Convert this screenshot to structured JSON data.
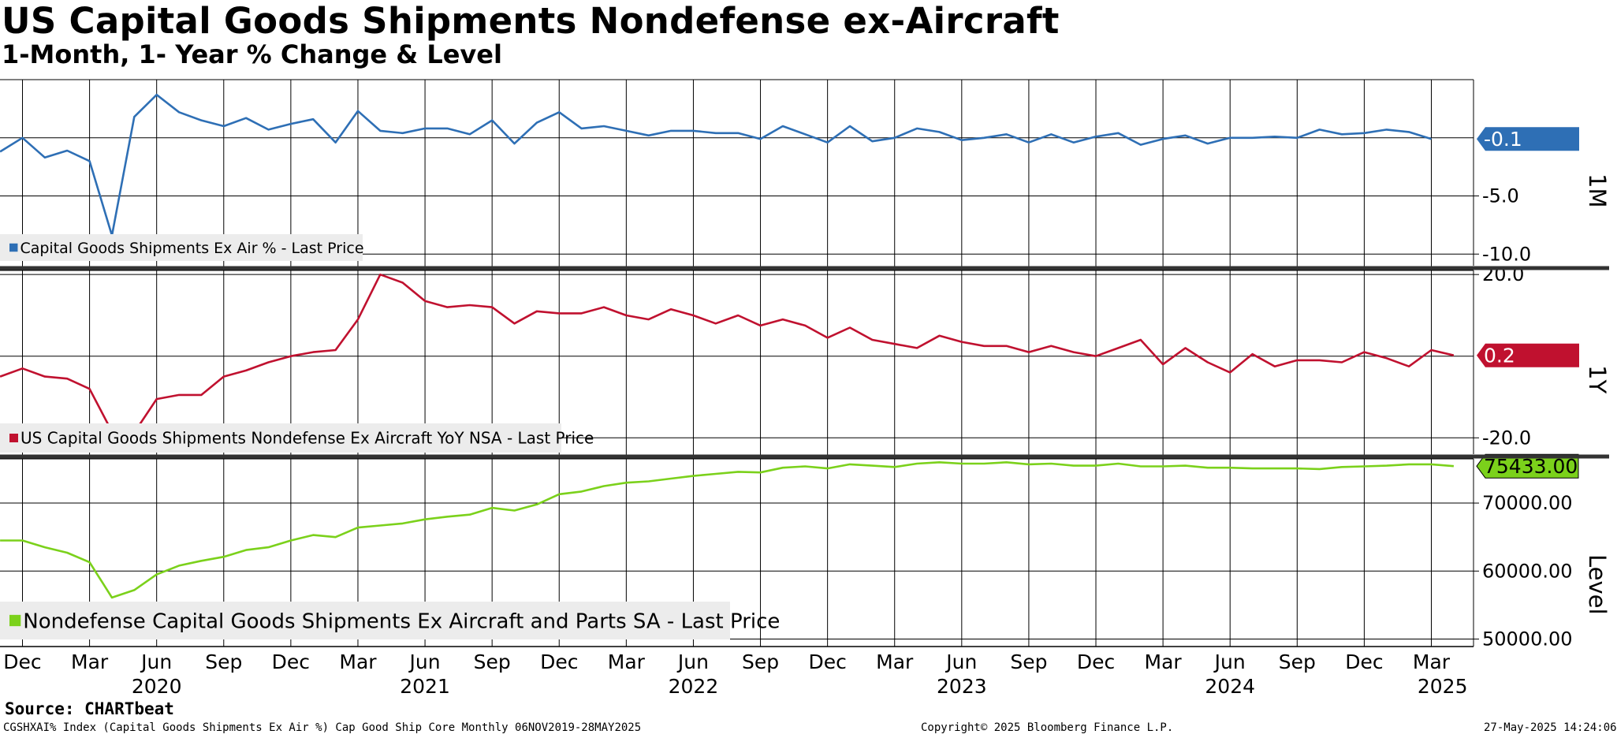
{
  "header": {
    "title": "US Capital Goods Shipments Nondefense ex-Aircraft",
    "subtitle": "1-Month, 1- Year % Change & Level"
  },
  "footer": {
    "source": "Source: CHARTbeat",
    "ticker": "CGSHXAI% Index (Capital Goods Shipments Ex Air %) Cap Good Ship Core  Monthly 06NOV2019-28MAY2025",
    "copyright": "Copyright© 2025 Bloomberg Finance L.P.",
    "timestamp": "27-May-2025 14:24:06"
  },
  "colors": {
    "blue": "#2e6fb5",
    "red": "#c0112f",
    "green": "#7bd11b"
  },
  "x_axis": {
    "month_labels": [
      "Dec",
      "Mar",
      "Jun",
      "Sep",
      "Dec",
      "Mar",
      "Jun",
      "Sep",
      "Dec",
      "Mar",
      "Jun",
      "Sep",
      "Dec",
      "Mar",
      "Jun",
      "Sep",
      "Dec",
      "Mar",
      "Jun",
      "Sep",
      "Dec",
      "Mar"
    ],
    "month_indices": [
      0,
      3,
      6,
      9,
      12,
      15,
      18,
      21,
      24,
      27,
      30,
      33,
      36,
      39,
      42,
      45,
      48,
      51,
      54,
      57,
      60,
      63
    ],
    "year_labels": [
      "2020",
      "2021",
      "2022",
      "2023",
      "2024",
      "2025"
    ],
    "year_indices": [
      6,
      18,
      30,
      42,
      54,
      63.5
    ]
  },
  "chart_data": [
    {
      "type": "line",
      "panel_label": "1M",
      "legend": "Capital Goods Shipments Ex Air % - Last Price",
      "x_start": "Nov 2019",
      "y_ticks": [
        -5.0,
        -10.0
      ],
      "y_tick_labels": [
        "-5.0",
        "-10.0"
      ],
      "ylim": [
        -11.0,
        5.0
      ],
      "last_value": -0.1,
      "last_label": "-0.1",
      "values": [
        -1.2,
        0.0,
        -1.7,
        -1.1,
        -2.0,
        -8.4,
        1.8,
        3.7,
        2.2,
        1.5,
        1.0,
        1.7,
        0.7,
        1.2,
        1.6,
        -0.4,
        2.3,
        0.6,
        0.4,
        0.8,
        0.8,
        0.3,
        1.5,
        -0.5,
        1.3,
        2.2,
        0.8,
        1.0,
        0.6,
        0.2,
        0.6,
        0.6,
        0.4,
        0.4,
        -0.1,
        1.0,
        0.3,
        -0.4,
        1.0,
        -0.3,
        0.0,
        0.8,
        0.5,
        -0.2,
        0.0,
        0.3,
        -0.4,
        0.3,
        -0.4,
        0.1,
        0.4,
        -0.6,
        -0.1,
        0.2,
        -0.5,
        0.0,
        0.0,
        0.1,
        0.0,
        0.7,
        0.3,
        0.4,
        0.7,
        0.5,
        -0.1
      ]
    },
    {
      "type": "line",
      "panel_label": "1Y",
      "legend": "US Capital Goods Shipments Nondefense Ex Aircraft YoY NSA - Last Price",
      "x_start": "Nov 2019",
      "y_ticks": [
        20.0,
        -20.0
      ],
      "y_tick_labels": [
        "20.0",
        "-20.0"
      ],
      "ylim": [
        -24.0,
        21.0
      ],
      "last_value": 0.2,
      "last_label": "0.2",
      "values": [
        -5.0,
        -3.0,
        -5.0,
        -5.5,
        -8.0,
        -18.5,
        -18.7,
        -10.5,
        -9.5,
        -9.5,
        -5.0,
        -3.5,
        -1.5,
        0.0,
        1.0,
        1.5,
        9.0,
        20.0,
        18.0,
        13.5,
        12.0,
        12.5,
        12.0,
        8.0,
        11.0,
        10.5,
        10.5,
        12.0,
        10.0,
        9.0,
        11.5,
        10.0,
        8.0,
        10.0,
        7.5,
        9.0,
        7.5,
        4.5,
        7.0,
        4.0,
        3.0,
        2.0,
        5.0,
        3.5,
        2.5,
        2.5,
        1.0,
        2.5,
        1.0,
        0.0,
        2.0,
        4.0,
        -2.0,
        2.0,
        -1.5,
        -4.0,
        0.5,
        -2.5,
        -1.0,
        -1.0,
        -1.5,
        1.0,
        -0.5,
        -2.5,
        1.5,
        0.2
      ]
    },
    {
      "type": "line",
      "panel_label": "Level",
      "legend": "Nondefense Capital Goods Shipments Ex Aircraft and Parts SA - Last Price",
      "x_start": "Nov 2019",
      "y_ticks": [
        70000,
        60000,
        50000
      ],
      "y_tick_labels": [
        "70000.00",
        "60000.00",
        "50000.00"
      ],
      "ylim": [
        48900,
        76500
      ],
      "last_value": 75433,
      "last_label": "75433.00",
      "values": [
        64500,
        64500,
        63500,
        62700,
        61300,
        56100,
        57200,
        59500,
        60800,
        61500,
        62100,
        63100,
        63500,
        64500,
        65300,
        65000,
        66400,
        66700,
        67000,
        67600,
        68000,
        68300,
        69300,
        68900,
        69800,
        71300,
        71700,
        72500,
        73000,
        73200,
        73600,
        74000,
        74300,
        74600,
        74500,
        75200,
        75400,
        75100,
        75700,
        75500,
        75300,
        75800,
        76000,
        75800,
        75800,
        76000,
        75700,
        75800,
        75500,
        75500,
        75800,
        75400,
        75400,
        75500,
        75200,
        75200,
        75100,
        75100,
        75100,
        75000,
        75300,
        75400,
        75500,
        75700,
        75700,
        75433
      ]
    }
  ]
}
